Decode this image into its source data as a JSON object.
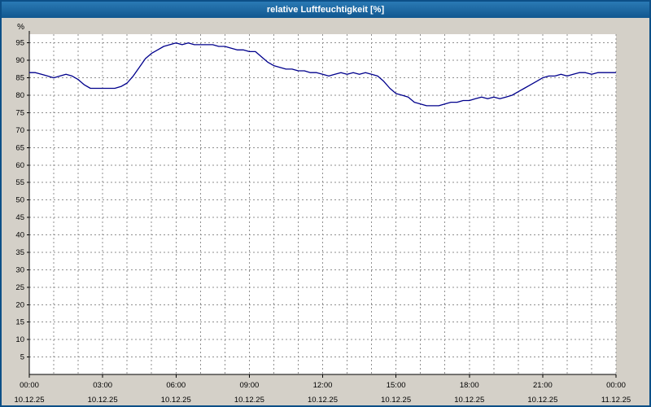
{
  "window": {
    "title": "relative Luftfeuchtigkeit [%]"
  },
  "colors": {
    "frame": "#0c4f87",
    "titlebar_top": "#2a7ab5",
    "titlebar_bottom": "#11578f",
    "background": "#d4d0c8",
    "plot_background": "#ffffff",
    "grid": "#8f8f8f",
    "axis": "#000000",
    "line": "#00008c"
  },
  "chart_data": {
    "type": "line",
    "title": "relative Luftfeuchtigkeit [%]",
    "ylabel": "%",
    "unit_label": "%",
    "ylim": [
      0,
      97.5
    ],
    "yticks": [
      5,
      10,
      15,
      20,
      25,
      30,
      35,
      40,
      45,
      50,
      55,
      60,
      65,
      70,
      75,
      80,
      85,
      90,
      95
    ],
    "x_hours_range": [
      0,
      24
    ],
    "minor_x_step_hours": 1,
    "grid": "dashed",
    "legend": "none",
    "xticks": [
      {
        "hour": 0,
        "time": "00:00",
        "date": "10.12.25"
      },
      {
        "hour": 3,
        "time": "03:00",
        "date": "10.12.25"
      },
      {
        "hour": 6,
        "time": "06:00",
        "date": "10.12.25"
      },
      {
        "hour": 9,
        "time": "09:00",
        "date": "10.12.25"
      },
      {
        "hour": 12,
        "time": "12:00",
        "date": "10.12.25"
      },
      {
        "hour": 15,
        "time": "15:00",
        "date": "10.12.25"
      },
      {
        "hour": 18,
        "time": "18:00",
        "date": "10.12.25"
      },
      {
        "hour": 21,
        "time": "21:00",
        "date": "10.12.25"
      },
      {
        "hour": 24,
        "time": "00:00",
        "date": "11.12.25"
      }
    ],
    "series": [
      {
        "name": "relative Luftfeuchtigkeit",
        "points": [
          [
            0,
            86.5
          ],
          [
            0.25,
            86.5
          ],
          [
            0.5,
            86
          ],
          [
            0.75,
            85.5
          ],
          [
            1,
            85
          ],
          [
            1.25,
            85.5
          ],
          [
            1.5,
            86
          ],
          [
            1.75,
            85.5
          ],
          [
            2,
            84.5
          ],
          [
            2.25,
            83
          ],
          [
            2.5,
            82
          ],
          [
            2.75,
            82
          ],
          [
            3,
            82
          ],
          [
            3.25,
            82
          ],
          [
            3.5,
            82
          ],
          [
            3.75,
            82.5
          ],
          [
            4,
            83.5
          ],
          [
            4.25,
            85.5
          ],
          [
            4.5,
            88
          ],
          [
            4.75,
            90.5
          ],
          [
            5,
            92
          ],
          [
            5.25,
            93
          ],
          [
            5.5,
            94
          ],
          [
            5.75,
            94.5
          ],
          [
            6,
            95
          ],
          [
            6.25,
            94.5
          ],
          [
            6.5,
            95
          ],
          [
            6.75,
            94.5
          ],
          [
            7,
            94.5
          ],
          [
            7.25,
            94.5
          ],
          [
            7.5,
            94.5
          ],
          [
            7.75,
            94
          ],
          [
            8,
            94
          ],
          [
            8.25,
            93.5
          ],
          [
            8.5,
            93
          ],
          [
            8.75,
            93
          ],
          [
            9,
            92.5
          ],
          [
            9.25,
            92.5
          ],
          [
            9.5,
            91
          ],
          [
            9.75,
            89.5
          ],
          [
            10,
            88.5
          ],
          [
            10.25,
            88
          ],
          [
            10.5,
            87.5
          ],
          [
            10.75,
            87.5
          ],
          [
            11,
            87
          ],
          [
            11.25,
            87
          ],
          [
            11.5,
            86.5
          ],
          [
            11.75,
            86.5
          ],
          [
            12,
            86
          ],
          [
            12.25,
            85.5
          ],
          [
            12.5,
            86
          ],
          [
            12.75,
            86.5
          ],
          [
            13,
            86
          ],
          [
            13.25,
            86.5
          ],
          [
            13.5,
            86
          ],
          [
            13.75,
            86.5
          ],
          [
            14,
            86
          ],
          [
            14.25,
            85.5
          ],
          [
            14.5,
            84
          ],
          [
            14.75,
            82
          ],
          [
            15,
            80.5
          ],
          [
            15.25,
            80
          ],
          [
            15.5,
            79.5
          ],
          [
            15.75,
            78
          ],
          [
            16,
            77.5
          ],
          [
            16.25,
            77
          ],
          [
            16.5,
            77
          ],
          [
            16.75,
            77
          ],
          [
            17,
            77.5
          ],
          [
            17.25,
            78
          ],
          [
            17.5,
            78
          ],
          [
            17.75,
            78.5
          ],
          [
            18,
            78.5
          ],
          [
            18.25,
            79
          ],
          [
            18.5,
            79.5
          ],
          [
            18.75,
            79
          ],
          [
            19,
            79.5
          ],
          [
            19.25,
            79
          ],
          [
            19.5,
            79.5
          ],
          [
            19.75,
            80
          ],
          [
            20,
            81
          ],
          [
            20.25,
            82
          ],
          [
            20.5,
            83
          ],
          [
            20.75,
            84
          ],
          [
            21,
            85
          ],
          [
            21.25,
            85.5
          ],
          [
            21.5,
            85.5
          ],
          [
            21.75,
            86
          ],
          [
            22,
            85.5
          ],
          [
            22.25,
            86
          ],
          [
            22.5,
            86.5
          ],
          [
            22.75,
            86.5
          ],
          [
            23,
            86
          ],
          [
            23.25,
            86.5
          ],
          [
            23.5,
            86.5
          ],
          [
            23.75,
            86.5
          ],
          [
            24,
            86.5
          ]
        ]
      }
    ]
  }
}
